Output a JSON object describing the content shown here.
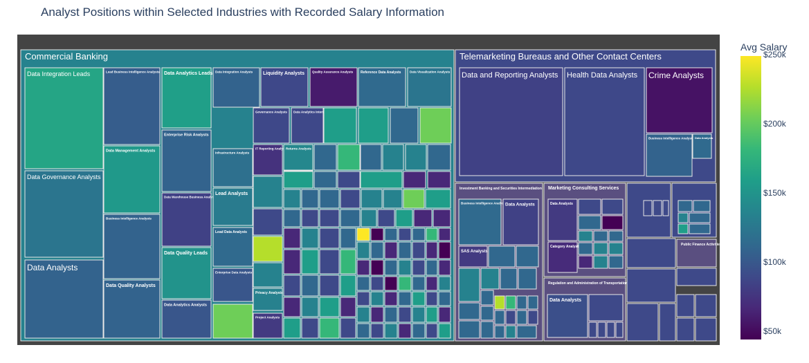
{
  "title": "Analyst Positions within Selected Industries with Recorded Salary Information",
  "colorbar": {
    "title": "Avg Salary",
    "ticks": [
      {
        "label": "$250k",
        "value": 250000
      },
      {
        "label": "$200k",
        "value": 200000
      },
      {
        "label": "$150k",
        "value": 150000
      },
      {
        "label": "$100k",
        "value": 100000
      },
      {
        "label": "$50k",
        "value": 50000
      }
    ],
    "range": [
      45000,
      250000
    ],
    "colorscale": "Viridis"
  },
  "chart_data": {
    "type": "treemap",
    "colorscale": "Viridis",
    "color_range": [
      45000,
      250000
    ],
    "color_label": "Avg Salary",
    "industries": [
      {
        "name": "Commercial Banking",
        "positions": [
          {
            "name": "Data Integration Leads",
            "avg_salary": 165000
          },
          {
            "name": "Data Governance Analysts",
            "avg_salary": 125000
          },
          {
            "name": "Data Analysts",
            "avg_salary": 110000
          },
          {
            "name": "Lead Business Intelligence Analysts",
            "avg_salary": 105000
          },
          {
            "name": "Data Management Analysts",
            "avg_salary": 155000
          },
          {
            "name": "Business Intelligence Analysts",
            "avg_salary": 110000
          },
          {
            "name": "Data Quality Analysts",
            "avg_salary": 110000
          },
          {
            "name": "Data Analytics Leads",
            "avg_salary": 160000
          },
          {
            "name": "Enterprise Risk Analysts",
            "avg_salary": 110000
          },
          {
            "name": "Data Warehouse Business Analysts",
            "avg_salary": 85000
          },
          {
            "name": "Data Quality Leads",
            "avg_salary": 150000
          },
          {
            "name": "Data Analytics Analysts",
            "avg_salary": 100000
          },
          {
            "name": "Data Integration Analysts",
            "avg_salary": 110000
          },
          {
            "name": "Infrastructure Analysts",
            "avg_salary": 120000
          },
          {
            "name": "Lead Analysts",
            "avg_salary": 130000
          },
          {
            "name": "Lead Data Analysts",
            "avg_salary": 115000
          },
          {
            "name": "Enterprise Data Analysts",
            "avg_salary": 100000
          },
          {
            "name": "Liquidity Analysts",
            "avg_salary": 90000
          },
          {
            "name": "Quality Assurance Analysts",
            "avg_salary": 60000
          },
          {
            "name": "Reference Data Analysts",
            "avg_salary": 115000
          },
          {
            "name": "Data Visualization Analysts",
            "avg_salary": 125000
          },
          {
            "name": "Governance Analysts",
            "avg_salary": 90000
          },
          {
            "name": "Data Analytics Interns",
            "avg_salary": 90000
          },
          {
            "name": "IT Reporting Analysts",
            "avg_salary": 75000
          },
          {
            "name": "Returns Analysts",
            "avg_salary": 140000
          },
          {
            "name": "Privacy Analysts",
            "avg_salary": 135000
          },
          {
            "name": "Project Analysts",
            "avg_salary": 80000
          }
        ]
      },
      {
        "name": "Telemarketing Bureaus and Other Contact Centers",
        "positions": [
          {
            "name": "Data and Reporting Analysts",
            "avg_salary": 85000
          },
          {
            "name": "Health Data Analysts",
            "avg_salary": 90000
          },
          {
            "name": "Crime Analysts",
            "avg_salary": 55000
          },
          {
            "name": "Business Intelligence Analysts",
            "avg_salary": 110000
          },
          {
            "name": "Data Analysts",
            "avg_salary": 115000
          }
        ]
      },
      {
        "name": "Investment Banking and Securities Intermediation",
        "positions": [
          {
            "name": "Business Intelligence Analysts",
            "avg_salary": 115000
          },
          {
            "name": "Data Analysts",
            "avg_salary": 85000
          },
          {
            "name": "SAS Analysts",
            "avg_salary": 80000
          }
        ]
      },
      {
        "name": "Marketing Consulting Services",
        "positions": [
          {
            "name": "Data Analysts",
            "avg_salary": 80000
          },
          {
            "name": "Category Analysts",
            "avg_salary": 70000
          }
        ]
      },
      {
        "name": "Regulation and Administration of Transportation Programs",
        "positions": [
          {
            "name": "Data Analysts",
            "avg_salary": 95000
          }
        ]
      },
      {
        "name": "Public Finance Activities",
        "positions": []
      }
    ]
  }
}
